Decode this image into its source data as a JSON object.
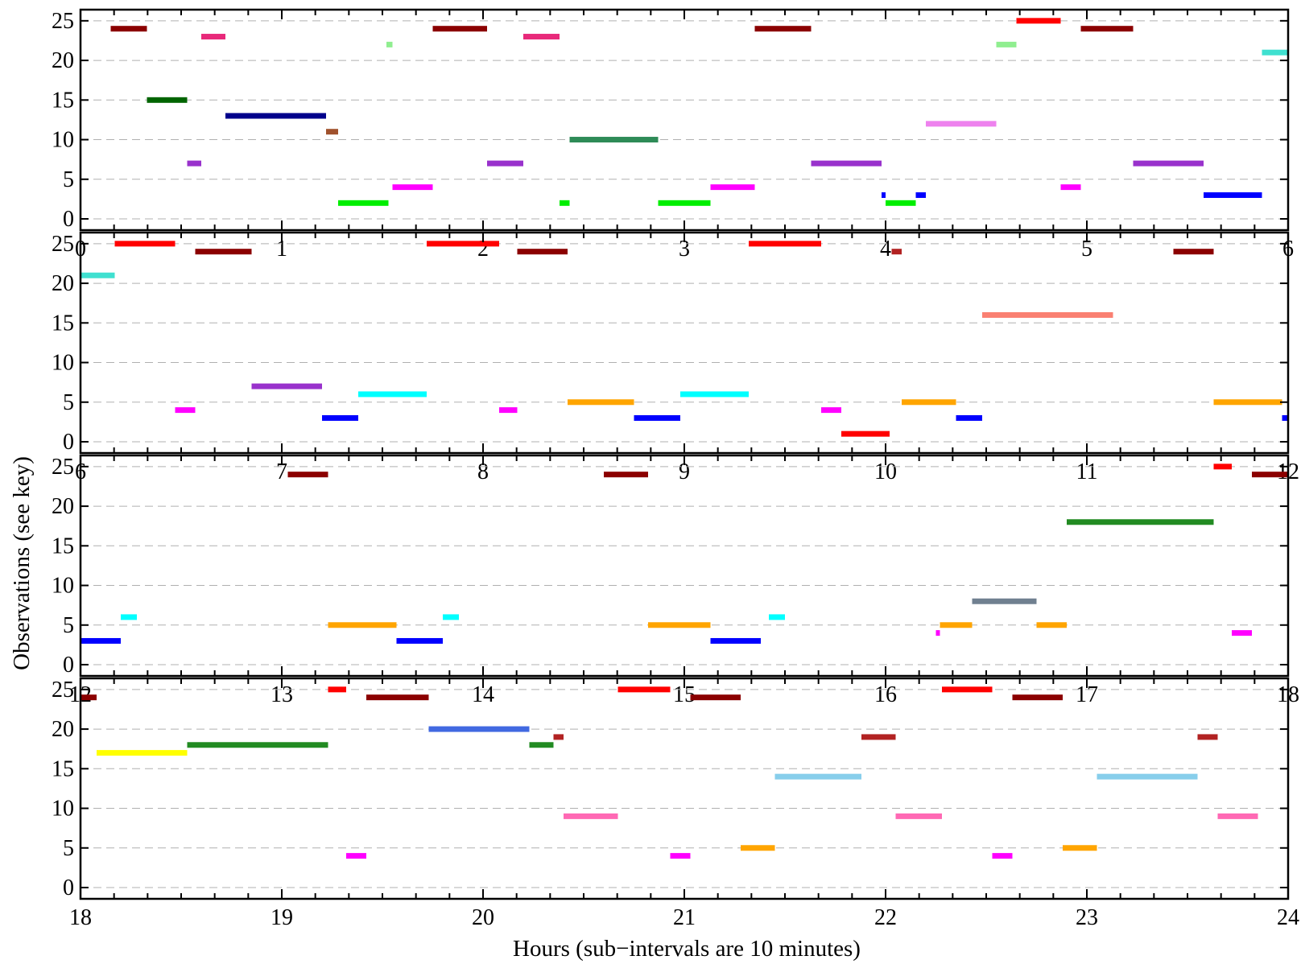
{
  "chart_data": {
    "type": "timeline",
    "xlabel": "Hours (sub−intervals are 10 minutes)",
    "ylabel": "Observations (see key)",
    "ylim": [
      0,
      26
    ],
    "yticks": [
      0,
      5,
      10,
      15,
      20,
      25
    ],
    "grid": "horizontal dashed",
    "panels": [
      {
        "xlim": [
          0,
          6
        ],
        "xticks": [
          "0",
          "1",
          "2",
          "3",
          "4",
          "5",
          "6"
        ]
      },
      {
        "xlim": [
          6,
          12
        ],
        "xticks": [
          "6",
          "7",
          "8",
          "9",
          "10",
          "11",
          "12"
        ]
      },
      {
        "xlim": [
          12,
          18
        ],
        "xticks": [
          "12",
          "13",
          "14",
          "15",
          "16",
          "17",
          "18"
        ]
      },
      {
        "xlim": [
          18,
          24
        ],
        "xticks": [
          "18",
          "19",
          "20",
          "21",
          "22",
          "23",
          "24"
        ]
      }
    ],
    "segments": [
      {
        "y": 24,
        "start": 0.15,
        "end": 0.33,
        "color": "#8b0000"
      },
      {
        "y": 23,
        "start": 0.6,
        "end": 0.72,
        "color": "#e8297a"
      },
      {
        "y": 22,
        "start": 1.52,
        "end": 1.55,
        "color": "#90ee90"
      },
      {
        "y": 15,
        "start": 0.33,
        "end": 0.53,
        "color": "#006400"
      },
      {
        "y": 13,
        "start": 0.72,
        "end": 1.22,
        "color": "#00008b"
      },
      {
        "y": 11,
        "start": 1.22,
        "end": 1.28,
        "color": "#a0522d"
      },
      {
        "y": 7,
        "start": 0.53,
        "end": 0.6,
        "color": "#9932cc"
      },
      {
        "y": 2,
        "start": 1.28,
        "end": 1.53,
        "color": "#00ee00"
      },
      {
        "y": 4,
        "start": 1.55,
        "end": 1.75,
        "color": "#ff00ff"
      },
      {
        "y": 24,
        "start": 1.75,
        "end": 2.02,
        "color": "#8b0000"
      },
      {
        "y": 23,
        "start": 2.2,
        "end": 2.38,
        "color": "#e8297a"
      },
      {
        "y": 10,
        "start": 2.43,
        "end": 2.87,
        "color": "#2e8b57"
      },
      {
        "y": 7,
        "start": 2.02,
        "end": 2.2,
        "color": "#9932cc"
      },
      {
        "y": 2,
        "start": 2.38,
        "end": 2.43,
        "color": "#00ee00"
      },
      {
        "y": 2,
        "start": 2.87,
        "end": 3.13,
        "color": "#00ee00"
      },
      {
        "y": 4,
        "start": 3.13,
        "end": 3.35,
        "color": "#ff00ff"
      },
      {
        "y": 24,
        "start": 3.35,
        "end": 3.63,
        "color": "#8b0000"
      },
      {
        "y": 7,
        "start": 3.63,
        "end": 3.98,
        "color": "#9932cc"
      },
      {
        "y": 3,
        "start": 3.98,
        "end": 4.0,
        "color": "#0000ff"
      },
      {
        "y": 2,
        "start": 4.0,
        "end": 4.15,
        "color": "#00ee00"
      },
      {
        "y": 3,
        "start": 4.15,
        "end": 4.2,
        "color": "#0000ff"
      },
      {
        "y": 12,
        "start": 4.2,
        "end": 4.55,
        "color": "#ee82ee"
      },
      {
        "y": 22,
        "start": 4.55,
        "end": 4.65,
        "color": "#90ee90"
      },
      {
        "y": 25,
        "start": 4.65,
        "end": 4.87,
        "color": "#ff0000"
      },
      {
        "y": 4,
        "start": 4.87,
        "end": 4.97,
        "color": "#ff00ff"
      },
      {
        "y": 24,
        "start": 4.97,
        "end": 5.23,
        "color": "#8b0000"
      },
      {
        "y": 7,
        "start": 5.23,
        "end": 5.58,
        "color": "#9932cc"
      },
      {
        "y": 3,
        "start": 5.58,
        "end": 5.87,
        "color": "#0000ff"
      },
      {
        "y": 21,
        "start": 5.87,
        "end": 6.0,
        "color": "#40e0d0"
      },
      {
        "y": 21,
        "start": 6.0,
        "end": 6.17,
        "color": "#40e0d0"
      },
      {
        "y": 25,
        "start": 6.17,
        "end": 6.47,
        "color": "#ff0000"
      },
      {
        "y": 4,
        "start": 6.47,
        "end": 6.57,
        "color": "#ff00ff"
      },
      {
        "y": 24,
        "start": 6.57,
        "end": 6.85,
        "color": "#8b0000"
      },
      {
        "y": 7,
        "start": 6.85,
        "end": 7.2,
        "color": "#9932cc"
      },
      {
        "y": 3,
        "start": 7.2,
        "end": 7.38,
        "color": "#0000ff"
      },
      {
        "y": 6,
        "start": 7.38,
        "end": 7.72,
        "color": "#00ffff"
      },
      {
        "y": 25,
        "start": 7.72,
        "end": 8.08,
        "color": "#ff0000"
      },
      {
        "y": 4,
        "start": 8.08,
        "end": 8.17,
        "color": "#ff00ff"
      },
      {
        "y": 24,
        "start": 8.17,
        "end": 8.42,
        "color": "#8b0000"
      },
      {
        "y": 5,
        "start": 8.42,
        "end": 8.75,
        "color": "#ffa500"
      },
      {
        "y": 3,
        "start": 8.75,
        "end": 8.98,
        "color": "#0000ff"
      },
      {
        "y": 6,
        "start": 8.98,
        "end": 9.32,
        "color": "#00ffff"
      },
      {
        "y": 25,
        "start": 9.32,
        "end": 9.68,
        "color": "#ff0000"
      },
      {
        "y": 4,
        "start": 9.68,
        "end": 9.78,
        "color": "#ff00ff"
      },
      {
        "y": 1,
        "start": 9.78,
        "end": 10.02,
        "color": "#ff0000"
      },
      {
        "y": 24,
        "start": 10.03,
        "end": 10.08,
        "color": "#b22222"
      },
      {
        "y": 5,
        "start": 10.08,
        "end": 10.35,
        "color": "#ffa500"
      },
      {
        "y": 3,
        "start": 10.35,
        "end": 10.48,
        "color": "#0000ff"
      },
      {
        "y": 16,
        "start": 10.48,
        "end": 11.13,
        "color": "#fa8072"
      },
      {
        "y": 24,
        "start": 11.43,
        "end": 11.63,
        "color": "#8b0000"
      },
      {
        "y": 5,
        "start": 11.63,
        "end": 11.97,
        "color": "#ffa500"
      },
      {
        "y": 3,
        "start": 11.97,
        "end": 12.0,
        "color": "#0000ff"
      },
      {
        "y": 3,
        "start": 12.0,
        "end": 12.2,
        "color": "#0000ff"
      },
      {
        "y": 6,
        "start": 12.2,
        "end": 12.28,
        "color": "#00ffff"
      },
      {
        "y": 24,
        "start": 13.03,
        "end": 13.23,
        "color": "#8b0000"
      },
      {
        "y": 5,
        "start": 13.23,
        "end": 13.57,
        "color": "#ffa500"
      },
      {
        "y": 3,
        "start": 13.57,
        "end": 13.8,
        "color": "#0000ff"
      },
      {
        "y": 6,
        "start": 13.8,
        "end": 13.88,
        "color": "#00ffff"
      },
      {
        "y": 24,
        "start": 14.6,
        "end": 14.82,
        "color": "#8b0000"
      },
      {
        "y": 5,
        "start": 14.82,
        "end": 15.13,
        "color": "#ffa500"
      },
      {
        "y": 3,
        "start": 15.13,
        "end": 15.38,
        "color": "#0000ff"
      },
      {
        "y": 6,
        "start": 15.42,
        "end": 15.5,
        "color": "#00ffff"
      },
      {
        "y": 4,
        "start": 16.25,
        "end": 16.27,
        "color": "#ff00ff"
      },
      {
        "y": 5,
        "start": 16.27,
        "end": 16.43,
        "color": "#ffa500"
      },
      {
        "y": 8,
        "start": 16.43,
        "end": 16.75,
        "color": "#708090"
      },
      {
        "y": 5,
        "start": 16.75,
        "end": 16.9,
        "color": "#ffa500"
      },
      {
        "y": 18,
        "start": 16.9,
        "end": 17.63,
        "color": "#228b22"
      },
      {
        "y": 25,
        "start": 17.63,
        "end": 17.72,
        "color": "#ff0000"
      },
      {
        "y": 4,
        "start": 17.72,
        "end": 17.82,
        "color": "#ff00ff"
      },
      {
        "y": 24,
        "start": 17.82,
        "end": 18.0,
        "color": "#8b0000"
      },
      {
        "y": 24,
        "start": 18.0,
        "end": 18.08,
        "color": "#8b0000"
      },
      {
        "y": 17,
        "start": 18.08,
        "end": 18.53,
        "color": "#ffff00"
      },
      {
        "y": 18,
        "start": 18.53,
        "end": 19.23,
        "color": "#228b22"
      },
      {
        "y": 25,
        "start": 19.23,
        "end": 19.32,
        "color": "#ff0000"
      },
      {
        "y": 4,
        "start": 19.32,
        "end": 19.42,
        "color": "#ff00ff"
      },
      {
        "y": 24,
        "start": 19.42,
        "end": 19.73,
        "color": "#8b0000"
      },
      {
        "y": 20,
        "start": 19.73,
        "end": 20.23,
        "color": "#4169e1"
      },
      {
        "y": 18,
        "start": 20.23,
        "end": 20.35,
        "color": "#228b22"
      },
      {
        "y": 19,
        "start": 20.35,
        "end": 20.4,
        "color": "#b22222"
      },
      {
        "y": 9,
        "start": 20.4,
        "end": 20.67,
        "color": "#ff69b4"
      },
      {
        "y": 25,
        "start": 20.67,
        "end": 20.93,
        "color": "#ff0000"
      },
      {
        "y": 4,
        "start": 20.93,
        "end": 21.03,
        "color": "#ff00ff"
      },
      {
        "y": 24,
        "start": 21.03,
        "end": 21.28,
        "color": "#8b0000"
      },
      {
        "y": 5,
        "start": 21.28,
        "end": 21.45,
        "color": "#ffa500"
      },
      {
        "y": 14,
        "start": 21.45,
        "end": 21.88,
        "color": "#87ceeb"
      },
      {
        "y": 19,
        "start": 21.88,
        "end": 22.05,
        "color": "#b22222"
      },
      {
        "y": 9,
        "start": 22.05,
        "end": 22.28,
        "color": "#ff69b4"
      },
      {
        "y": 25,
        "start": 22.28,
        "end": 22.53,
        "color": "#ff0000"
      },
      {
        "y": 4,
        "start": 22.53,
        "end": 22.63,
        "color": "#ff00ff"
      },
      {
        "y": 24,
        "start": 22.63,
        "end": 22.88,
        "color": "#8b0000"
      },
      {
        "y": 5,
        "start": 22.88,
        "end": 23.05,
        "color": "#ffa500"
      },
      {
        "y": 14,
        "start": 23.05,
        "end": 23.55,
        "color": "#87ceeb"
      },
      {
        "y": 19,
        "start": 23.55,
        "end": 23.65,
        "color": "#b22222"
      },
      {
        "y": 9,
        "start": 23.65,
        "end": 23.85,
        "color": "#ff69b4"
      }
    ]
  }
}
